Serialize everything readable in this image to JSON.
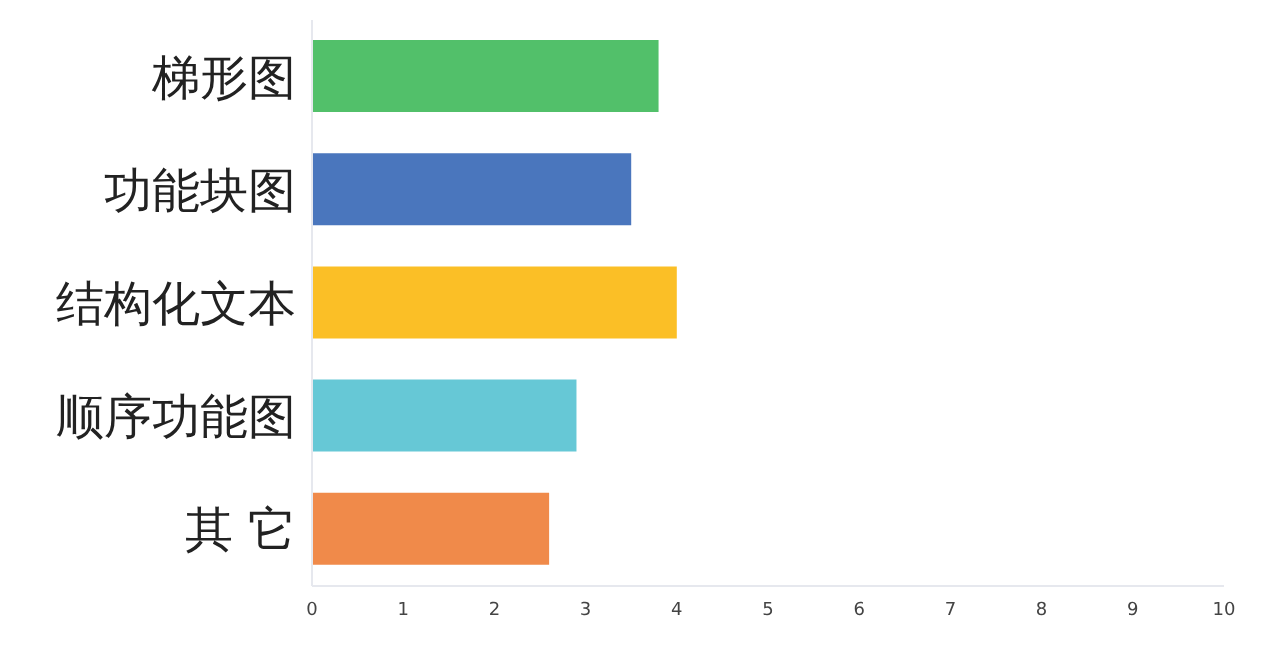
{
  "chart_data": {
    "type": "bar",
    "orientation": "horizontal",
    "categories": [
      "梯形图",
      "功能块图",
      "结构化文本",
      "顺序功能图",
      "其 它"
    ],
    "values": [
      3.8,
      3.5,
      4.0,
      2.9,
      2.6
    ],
    "colors": [
      "#52c06a",
      "#4a76bd",
      "#fbbf26",
      "#66c8d6",
      "#f08a4a"
    ],
    "xlim": [
      0,
      10
    ],
    "xticks": [
      0,
      1,
      2,
      3,
      4,
      5,
      6,
      7,
      8,
      9,
      10
    ],
    "grid": false
  }
}
